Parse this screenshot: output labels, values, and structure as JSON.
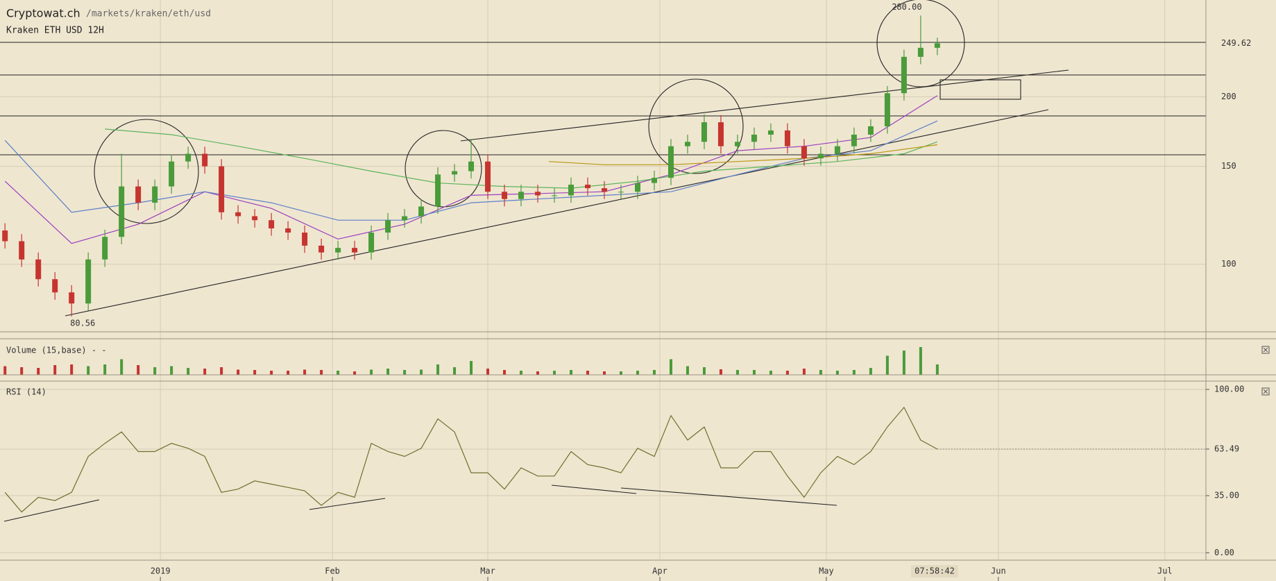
{
  "header": {
    "site": "Cryptowat.ch",
    "path": "/markets/kraken/eth/usd",
    "clock": "07:58:42"
  },
  "chart_data": [
    {
      "type": "candlestick",
      "title": "Kraken ETH USD 12H",
      "log_scale": true,
      "grid": true,
      "up_color": "#4a9b3a",
      "down_color": "#c6342f",
      "x": [
        -28,
        -25,
        -22,
        -19,
        -16,
        -13,
        -10,
        -7,
        -4,
        -1,
        2,
        5,
        8,
        11,
        14,
        17,
        20,
        23,
        26,
        29,
        32,
        35,
        38,
        41,
        44,
        47,
        50,
        53,
        56,
        59,
        62,
        65,
        68,
        71,
        74,
        77,
        80,
        83,
        86,
        89,
        92,
        95,
        98,
        101,
        104,
        107,
        110,
        113,
        116,
        119,
        122,
        125,
        128,
        131,
        134,
        137,
        140
      ],
      "open": [
        115,
        110,
        102,
        94,
        89,
        85,
        102,
        112,
        138,
        129,
        138,
        153,
        158,
        150,
        124,
        122,
        120,
        116,
        114,
        108,
        105,
        107,
        105,
        114,
        120,
        122,
        127,
        145,
        147,
        153,
        135,
        131,
        135,
        133,
        133,
        139,
        137,
        135,
        135,
        140,
        143,
        163,
        166,
        180,
        163,
        166,
        171,
        174,
        163,
        155,
        158,
        163,
        171,
        177,
        203,
        236,
        245
      ],
      "high": [
        118.5,
        113.3,
        105,
        96.8,
        91.7,
        105,
        115.4,
        158,
        142,
        142,
        157.6,
        162.7,
        162.7,
        154.5,
        127.7,
        125.7,
        123.6,
        119.5,
        117.4,
        111.2,
        110.2,
        110.2,
        117.4,
        123.6,
        125.7,
        130.8,
        149.4,
        151.4,
        168,
        157.6,
        139,
        139,
        139,
        137,
        143.2,
        143.2,
        141.1,
        139,
        144.2,
        147.3,
        167.9,
        171,
        186,
        185.4,
        171,
        176.1,
        179.2,
        179.2,
        167.9,
        162.7,
        167.9,
        176.1,
        182.3,
        209.1,
        243.1,
        280,
        255.4
      ],
      "low": [
        106.7,
        98.9,
        91.2,
        86.3,
        80.56,
        82.5,
        98.9,
        108.6,
        125.1,
        125.1,
        133.9,
        148.4,
        145.5,
        120.3,
        118.3,
        116.4,
        112.5,
        110.6,
        104.8,
        101.9,
        101.9,
        101.9,
        101.9,
        110.6,
        116.4,
        118.3,
        123.2,
        140.7,
        142.6,
        131,
        127.1,
        127.1,
        129,
        129,
        129,
        132.9,
        131,
        131,
        131,
        135.8,
        138.7,
        158.1,
        161,
        158.1,
        158.1,
        161,
        165.9,
        158.1,
        150.4,
        150.4,
        153.3,
        158.1,
        165.9,
        171.7,
        196.9,
        228.9,
        237.7
      ],
      "close": [
        110,
        102,
        94,
        89,
        85,
        102,
        112,
        138,
        129,
        138,
        153,
        158,
        150,
        124,
        122,
        120,
        116,
        114,
        108,
        105,
        107,
        105,
        114,
        120,
        122,
        127,
        145,
        147,
        153,
        135,
        131,
        135,
        133,
        133,
        139,
        137,
        135,
        135,
        140,
        143,
        163,
        166,
        180,
        163,
        166,
        171,
        174,
        163,
        155,
        158,
        163,
        171,
        177,
        203,
        236,
        245,
        249.62
      ],
      "lines": [
        {
          "color": "#9b3fbf",
          "x": [
            -28,
            -16,
            -4,
            8,
            20,
            32,
            44,
            56,
            68,
            80,
            92,
            104,
            116,
            128,
            140
          ],
          "values": [
            141,
            109,
            118,
            135,
            126,
            111,
            118,
            133,
            134,
            135,
            145,
            160,
            163,
            169,
            201
          ]
        },
        {
          "color": "#5b7fc9",
          "x": [
            -28,
            -16,
            -4,
            8,
            20,
            32,
            44,
            56,
            68,
            80,
            92,
            104,
            116,
            128,
            140
          ],
          "values": [
            167,
            124,
            129,
            135,
            129,
            120,
            120,
            129,
            131,
            133,
            135,
            145,
            155,
            160,
            181
          ]
        },
        {
          "color": "#5ab55a",
          "x": [
            -10,
            2,
            14,
            26,
            38,
            50,
            62,
            74,
            86,
            98,
            110,
            122,
            134,
            140
          ],
          "values": [
            175,
            171,
            163,
            155,
            147,
            140,
            138,
            137,
            141,
            147,
            150,
            153,
            158,
            166
          ]
        },
        {
          "color": "#b8960f",
          "x": [
            70,
            80,
            92,
            104,
            116,
            128,
            140
          ],
          "values": [
            153,
            151,
            151,
            153,
            155,
            158,
            164
          ]
        }
      ],
      "annotations": [
        {
          "x": 137,
          "value": 280,
          "label": "280.00"
        },
        {
          "x": -16,
          "value": 80.56,
          "label": "80.56"
        }
      ],
      "last_price": {
        "value": 249.62,
        "label": "249.62"
      },
      "ylim": [
        75.6,
        298.6
      ],
      "yticks": [
        100,
        150,
        200
      ],
      "xlim": [
        -28.9,
        188.4
      ],
      "xticks": [
        {
          "value": 0,
          "label": "2019"
        },
        {
          "value": 31,
          "label": "Feb"
        },
        {
          "value": 59,
          "label": "Mar"
        },
        {
          "value": 90,
          "label": "Apr"
        },
        {
          "value": 120,
          "label": "May"
        },
        {
          "value": 151,
          "label": "Jun"
        },
        {
          "value": 181,
          "label": "Jul"
        }
      ]
    },
    {
      "type": "bar",
      "title": "Volume (15,base) - -",
      "values": [
        25,
        22,
        20,
        28,
        30,
        25,
        30,
        45,
        28,
        22,
        25,
        20,
        18,
        22,
        15,
        14,
        12,
        12,
        15,
        14,
        12,
        10,
        15,
        18,
        14,
        15,
        30,
        22,
        40,
        18,
        14,
        12,
        10,
        12,
        14,
        12,
        10,
        10,
        12,
        14,
        45,
        25,
        22,
        16,
        14,
        14,
        12,
        12,
        18,
        14,
        12,
        14,
        20,
        55,
        70,
        80,
        30
      ],
      "ylim": [
        0,
        100
      ]
    },
    {
      "type": "line",
      "title": "RSI (14)",
      "color": "#6f6f2c",
      "grid": true,
      "values": [
        37,
        25,
        34,
        32,
        37,
        59,
        67,
        74,
        62,
        62,
        67,
        64,
        59,
        37,
        39,
        44,
        42,
        40,
        38,
        29,
        37,
        34,
        67,
        62,
        59,
        64,
        82,
        74,
        49,
        49,
        39,
        52,
        47,
        47,
        62,
        54,
        52,
        49,
        64,
        59,
        84,
        69,
        77,
        52,
        52,
        62,
        62,
        47,
        34,
        49,
        59,
        54,
        62,
        77,
        89,
        69,
        63.49
      ],
      "ylim": [
        -4.5,
        105.1
      ],
      "yticks": [
        {
          "value": 100,
          "label": "100.00"
        },
        63.49,
        {
          "value": 35,
          "label": "35.00"
        },
        {
          "value": 0,
          "label": "0.00"
        }
      ]
    }
  ]
}
